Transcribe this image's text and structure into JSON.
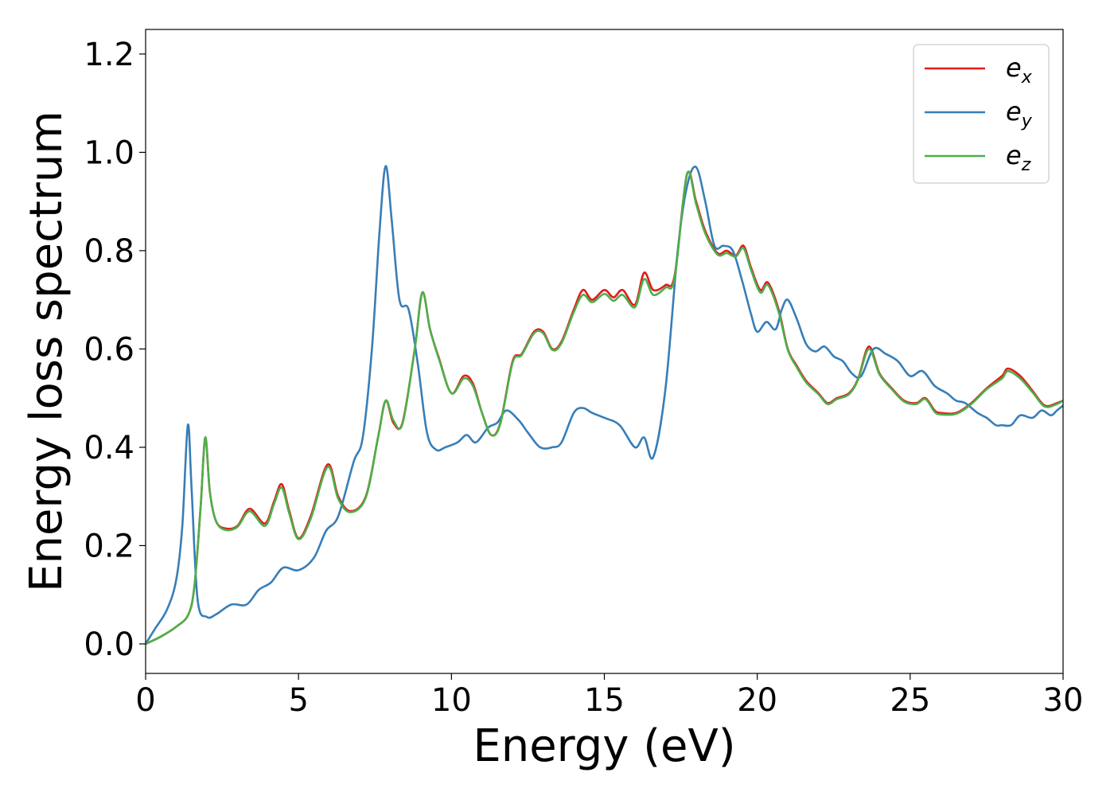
{
  "chart_data": {
    "type": "line",
    "xlabel": "Energy (eV)",
    "ylabel": "Energy loss spectrum",
    "xlim": [
      0,
      30
    ],
    "ylim": [
      -0.06,
      1.25
    ],
    "xticks": [
      0,
      5,
      10,
      15,
      20,
      25,
      30
    ],
    "xtick_labels": [
      "0",
      "5",
      "10",
      "15",
      "20",
      "25",
      "30"
    ],
    "yticks": [
      0.0,
      0.2,
      0.4,
      0.6,
      0.8,
      1.0,
      1.2
    ],
    "ytick_labels": [
      "0.0",
      "0.2",
      "0.4",
      "0.6",
      "0.8",
      "1.0",
      "1.2"
    ],
    "grid": false,
    "legend_position": "top-right",
    "series": [
      {
        "name": "e_x",
        "label_base": "e",
        "label_sub": "x",
        "color": "#e41a1c",
        "x": [
          0,
          0.5,
          1.0,
          1.4,
          1.6,
          1.8,
          1.95,
          2.1,
          2.3,
          2.6,
          3.0,
          3.4,
          3.9,
          4.2,
          4.45,
          4.7,
          5.0,
          5.4,
          5.95,
          6.3,
          6.7,
          7.2,
          7.6,
          7.85,
          8.1,
          8.4,
          8.8,
          9.05,
          9.3,
          9.6,
          10.0,
          10.4,
          10.7,
          11.0,
          11.3,
          11.6,
          12.0,
          12.3,
          12.7,
          13.0,
          13.3,
          13.6,
          14.0,
          14.3,
          14.6,
          15.0,
          15.3,
          15.6,
          16.0,
          16.3,
          16.6,
          17.0,
          17.3,
          17.7,
          18.0,
          18.3,
          18.7,
          19.0,
          19.3,
          19.55,
          19.8,
          20.1,
          20.35,
          20.7,
          21.0,
          21.3,
          21.6,
          22.0,
          22.3,
          22.6,
          23.0,
          23.3,
          23.65,
          24.0,
          24.4,
          24.8,
          25.2,
          25.5,
          25.8,
          26.0,
          26.5,
          27.0,
          27.5,
          28.0,
          28.2,
          28.6,
          29.0,
          29.4,
          29.8,
          30.0
        ],
        "values": [
          0.0,
          0.015,
          0.035,
          0.06,
          0.12,
          0.28,
          0.42,
          0.31,
          0.25,
          0.235,
          0.24,
          0.275,
          0.245,
          0.29,
          0.325,
          0.27,
          0.215,
          0.26,
          0.365,
          0.3,
          0.27,
          0.3,
          0.42,
          0.495,
          0.45,
          0.45,
          0.6,
          0.715,
          0.64,
          0.58,
          0.51,
          0.545,
          0.53,
          0.47,
          0.425,
          0.45,
          0.575,
          0.59,
          0.635,
          0.635,
          0.6,
          0.615,
          0.68,
          0.72,
          0.7,
          0.72,
          0.705,
          0.72,
          0.69,
          0.755,
          0.72,
          0.73,
          0.75,
          0.955,
          0.9,
          0.84,
          0.795,
          0.8,
          0.79,
          0.81,
          0.765,
          0.72,
          0.735,
          0.68,
          0.6,
          0.565,
          0.535,
          0.51,
          0.49,
          0.5,
          0.51,
          0.54,
          0.605,
          0.55,
          0.52,
          0.495,
          0.49,
          0.5,
          0.475,
          0.47,
          0.47,
          0.49,
          0.52,
          0.545,
          0.56,
          0.545,
          0.515,
          0.485,
          0.49,
          0.495
        ]
      },
      {
        "name": "e_y",
        "label_base": "e",
        "label_sub": "y",
        "color": "#377eb8",
        "x": [
          0,
          0.3,
          0.7,
          1.0,
          1.2,
          1.38,
          1.5,
          1.7,
          2.0,
          2.3,
          2.8,
          3.3,
          3.7,
          4.1,
          4.5,
          5.0,
          5.5,
          5.9,
          6.3,
          6.8,
          7.1,
          7.4,
          7.65,
          7.85,
          8.05,
          8.3,
          8.6,
          8.9,
          9.2,
          9.5,
          9.8,
          10.2,
          10.5,
          10.8,
          11.2,
          11.5,
          11.8,
          12.2,
          12.5,
          12.9,
          13.3,
          13.6,
          14.0,
          14.3,
          14.6,
          15.0,
          15.5,
          16.0,
          16.3,
          16.6,
          17.0,
          17.4,
          17.7,
          18.0,
          18.3,
          18.6,
          18.9,
          19.2,
          19.5,
          19.8,
          20.0,
          20.3,
          20.6,
          20.8,
          21.0,
          21.3,
          21.6,
          21.9,
          22.2,
          22.5,
          22.8,
          23.1,
          23.4,
          23.8,
          24.2,
          24.6,
          25.0,
          25.4,
          25.8,
          26.2,
          26.5,
          26.8,
          27.2,
          27.5,
          27.8,
          28.0,
          28.3,
          28.6,
          29.0,
          29.3,
          29.6,
          29.8,
          30.0
        ],
        "values": [
          0.0,
          0.03,
          0.07,
          0.13,
          0.24,
          0.445,
          0.32,
          0.09,
          0.055,
          0.06,
          0.08,
          0.08,
          0.11,
          0.125,
          0.155,
          0.15,
          0.175,
          0.23,
          0.26,
          0.37,
          0.42,
          0.6,
          0.84,
          0.972,
          0.86,
          0.7,
          0.68,
          0.57,
          0.43,
          0.395,
          0.4,
          0.41,
          0.425,
          0.41,
          0.44,
          0.45,
          0.475,
          0.455,
          0.43,
          0.4,
          0.4,
          0.41,
          0.47,
          0.48,
          0.47,
          0.46,
          0.445,
          0.4,
          0.42,
          0.38,
          0.52,
          0.8,
          0.93,
          0.97,
          0.9,
          0.81,
          0.81,
          0.8,
          0.74,
          0.67,
          0.635,
          0.655,
          0.64,
          0.68,
          0.7,
          0.66,
          0.61,
          0.595,
          0.605,
          0.585,
          0.575,
          0.55,
          0.545,
          0.6,
          0.59,
          0.575,
          0.545,
          0.555,
          0.525,
          0.51,
          0.495,
          0.49,
          0.47,
          0.46,
          0.445,
          0.445,
          0.445,
          0.465,
          0.46,
          0.475,
          0.465,
          0.475,
          0.485
        ]
      },
      {
        "name": "e_z",
        "label_base": "e",
        "label_sub": "z",
        "color": "#4daf4a",
        "x": [
          0,
          0.5,
          1.0,
          1.4,
          1.6,
          1.8,
          1.95,
          2.1,
          2.3,
          2.6,
          3.0,
          3.4,
          3.9,
          4.2,
          4.45,
          4.7,
          5.0,
          5.4,
          5.95,
          6.3,
          6.7,
          7.2,
          7.6,
          7.85,
          8.1,
          8.4,
          8.8,
          9.05,
          9.3,
          9.6,
          10.0,
          10.4,
          10.7,
          11.0,
          11.3,
          11.6,
          12.0,
          12.3,
          12.7,
          13.0,
          13.3,
          13.6,
          14.0,
          14.3,
          14.6,
          15.0,
          15.3,
          15.6,
          16.0,
          16.3,
          16.6,
          17.0,
          17.3,
          17.7,
          18.0,
          18.3,
          18.7,
          19.0,
          19.3,
          19.55,
          19.8,
          20.1,
          20.35,
          20.7,
          21.0,
          21.3,
          21.6,
          22.0,
          22.3,
          22.6,
          23.0,
          23.3,
          23.65,
          24.0,
          24.4,
          24.8,
          25.2,
          25.5,
          25.8,
          26.0,
          26.5,
          27.0,
          27.5,
          28.0,
          28.2,
          28.6,
          29.0,
          29.4,
          29.8,
          30.0
        ],
        "values": [
          0.0,
          0.015,
          0.035,
          0.06,
          0.12,
          0.28,
          0.42,
          0.31,
          0.25,
          0.232,
          0.238,
          0.27,
          0.24,
          0.285,
          0.318,
          0.265,
          0.213,
          0.255,
          0.36,
          0.295,
          0.268,
          0.298,
          0.42,
          0.495,
          0.455,
          0.448,
          0.6,
          0.715,
          0.64,
          0.578,
          0.51,
          0.54,
          0.525,
          0.47,
          0.425,
          0.448,
          0.572,
          0.588,
          0.632,
          0.632,
          0.598,
          0.612,
          0.675,
          0.71,
          0.695,
          0.712,
          0.698,
          0.71,
          0.685,
          0.742,
          0.71,
          0.725,
          0.745,
          0.955,
          0.895,
          0.835,
          0.792,
          0.795,
          0.788,
          0.805,
          0.76,
          0.715,
          0.73,
          0.675,
          0.598,
          0.562,
          0.532,
          0.508,
          0.488,
          0.498,
          0.508,
          0.538,
          0.6,
          0.548,
          0.518,
          0.493,
          0.488,
          0.498,
          0.472,
          0.467,
          0.468,
          0.488,
          0.518,
          0.54,
          0.555,
          0.54,
          0.512,
          0.483,
          0.488,
          0.495
        ]
      }
    ]
  }
}
